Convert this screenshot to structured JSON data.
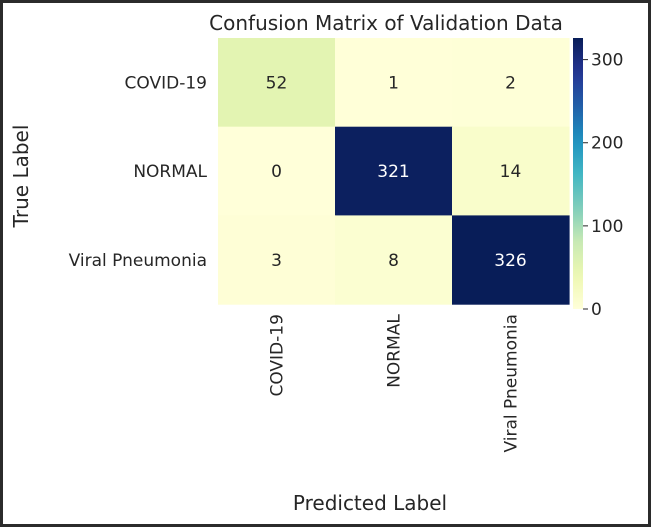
{
  "chart_data": {
    "type": "heatmap",
    "title": "Confusion Matrix of Validation Data",
    "xlabel": "Predicted Label",
    "ylabel": "True Label",
    "x_categories": [
      "COVID-19",
      "NORMAL",
      "Viral Pneumonia"
    ],
    "y_categories": [
      "COVID-19",
      "NORMAL",
      "Viral Pneumonia"
    ],
    "values": [
      [
        52,
        1,
        2
      ],
      [
        0,
        321,
        14
      ],
      [
        3,
        8,
        326
      ]
    ],
    "colormap": "YlGnBu",
    "colorbar": {
      "min": 0,
      "max": 326,
      "ticks": [
        0,
        100,
        200,
        300
      ]
    },
    "annotations": true,
    "grid": false
  }
}
